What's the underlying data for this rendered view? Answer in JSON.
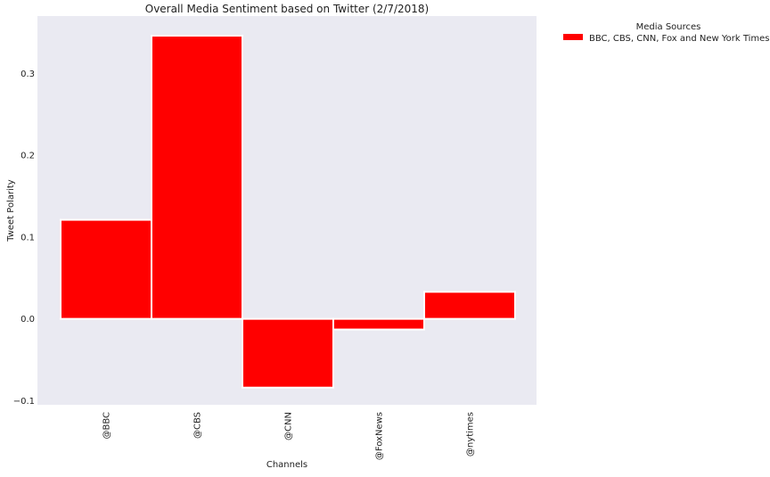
{
  "chart_data": {
    "type": "bar",
    "title": "Overall Media Sentiment based on Twitter (2/7/2018)",
    "xlabel": "Channels",
    "ylabel": "Tweet Polarity",
    "categories": [
      "@BBC",
      "@CBS",
      "@CNN",
      "@FoxNews",
      "@nytimes"
    ],
    "series": [
      {
        "name": "BBC, CBS, CNN, Fox and New York Times",
        "values": [
          0.121,
          0.346,
          -0.084,
          -0.013,
          0.033
        ]
      }
    ],
    "ylim": [
      -0.105,
      0.37
    ],
    "yticks": [
      -0.1,
      0.0,
      0.1,
      0.2,
      0.3
    ],
    "ytick_labels": [
      "−0.1",
      "0.0",
      "0.1",
      "0.2",
      "0.3"
    ],
    "grid": false,
    "legend": {
      "title": "Media Sources",
      "placement": "outside-top-right"
    },
    "colors": {
      "bar": "#ff0000",
      "plot_background": "#eaeaf2",
      "page_background": "#ffffff",
      "bar_edge": "#ffffff"
    }
  }
}
